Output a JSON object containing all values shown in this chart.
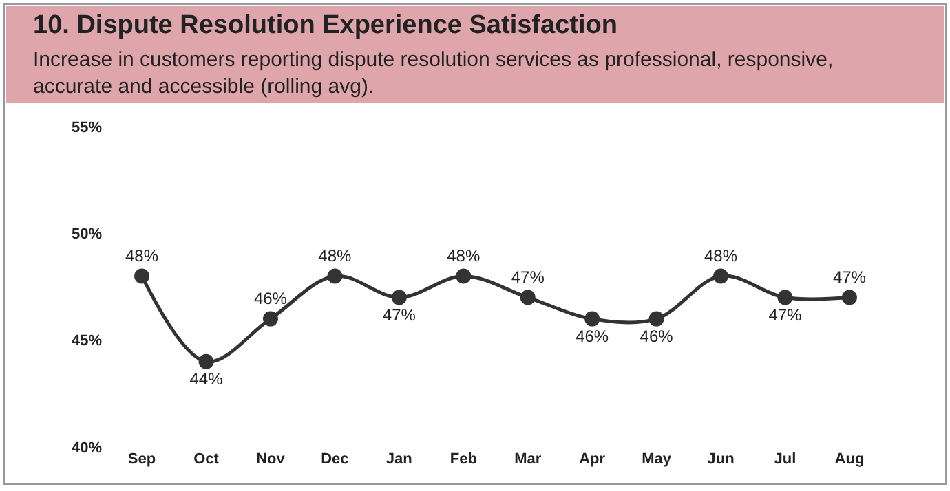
{
  "chart_data": {
    "type": "line",
    "title": "10. Dispute Resolution Experience Satisfaction",
    "subtitle": "Increase in customers reporting dispute resolution services as professional, responsive,\naccurate and accessible (rolling avg).",
    "categories": [
      "Sep",
      "Oct",
      "Nov",
      "Dec",
      "Jan",
      "Feb",
      "Mar",
      "Apr",
      "May",
      "Jun",
      "Jul",
      "Aug"
    ],
    "series": [
      {
        "color": "#333333",
        "values": [
          48,
          44,
          46,
          48,
          47,
          48,
          47,
          46,
          46,
          48,
          47,
          47
        ],
        "value_labels": [
          "48%",
          "44%",
          "46%",
          "48%",
          "47%",
          "48%",
          "47%",
          "46%",
          "46%",
          "48%",
          "47%",
          "47%"
        ]
      }
    ],
    "ylim": [
      40,
      55
    ],
    "yticks": [
      {
        "value": 40,
        "label": "40%"
      },
      {
        "value": 45,
        "label": "45%"
      },
      {
        "value": 50,
        "label": "50%"
      },
      {
        "value": 55,
        "label": "55%"
      }
    ],
    "marker": "circle",
    "line_style": "solid"
  }
}
